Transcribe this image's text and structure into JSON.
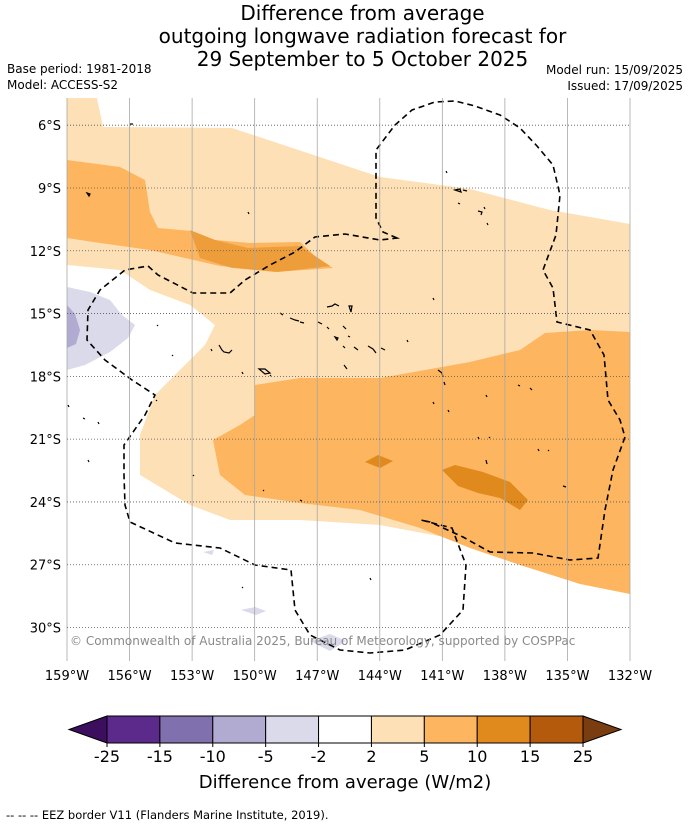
{
  "chart_data": {
    "type": "heatmap",
    "title_lines": [
      "Difference from average",
      "outgoing longwave radiation forecast for",
      "29 September to 5 October 2025"
    ],
    "base_period": "Base period: 1981-2018",
    "model": "Model: ACCESS-S2",
    "model_run": "Model run: 15/09/2025",
    "issued": "Issued: 17/09/2025",
    "lon_range": [
      -159,
      -132
    ],
    "lat_range": [
      -31.6,
      -4.7
    ],
    "x_ticks": [
      {
        "value": -159,
        "label": "159°W"
      },
      {
        "value": -156,
        "label": "156°W"
      },
      {
        "value": -153,
        "label": "153°W"
      },
      {
        "value": -150,
        "label": "150°W"
      },
      {
        "value": -147,
        "label": "147°W"
      },
      {
        "value": -144,
        "label": "144°W"
      },
      {
        "value": -141,
        "label": "141°W"
      },
      {
        "value": -138,
        "label": "138°W"
      },
      {
        "value": -135,
        "label": "135°W"
      },
      {
        "value": -132,
        "label": "132°W"
      }
    ],
    "y_ticks": [
      {
        "value": -6,
        "label": "6°S"
      },
      {
        "value": -9,
        "label": "9°S"
      },
      {
        "value": -12,
        "label": "12°S"
      },
      {
        "value": -15,
        "label": "15°S"
      },
      {
        "value": -18,
        "label": "18°S"
      },
      {
        "value": -21,
        "label": "21°S"
      },
      {
        "value": -24,
        "label": "24°S"
      },
      {
        "value": -27,
        "label": "27°S"
      },
      {
        "value": -30,
        "label": "30°S"
      }
    ],
    "copyright": "© Commonwealth of Australia 2025, Bureau of Meteorology, supported by COSPPac",
    "colorbar": {
      "label": "Difference from average (W/m2)",
      "tick_labels": [
        "-25",
        "-15",
        "-10",
        "-5",
        "-2",
        "2",
        "5",
        "10",
        "15",
        "25"
      ],
      "under_color": "#3b0f5e",
      "over_color": "#7a3d10",
      "bins": [
        {
          "from": -25,
          "to": -15,
          "color": "#5b2a8a"
        },
        {
          "from": -15,
          "to": -10,
          "color": "#8070ad"
        },
        {
          "from": -10,
          "to": -5,
          "color": "#b1aad1"
        },
        {
          "from": -5,
          "to": -2,
          "color": "#dadaeb"
        },
        {
          "from": -2,
          "to": 2,
          "color": "#ffffff"
        },
        {
          "from": 2,
          "to": 5,
          "color": "#fde0b5"
        },
        {
          "from": 5,
          "to": 10,
          "color": "#fdb55f"
        },
        {
          "from": 10,
          "to": 15,
          "color": "#e08a1e"
        },
        {
          "from": 15,
          "to": 25,
          "color": "#b35a0c"
        }
      ]
    },
    "eez_note": "--  --  -- EEZ border V11 (Flanders Marine Institute, 2019)."
  }
}
